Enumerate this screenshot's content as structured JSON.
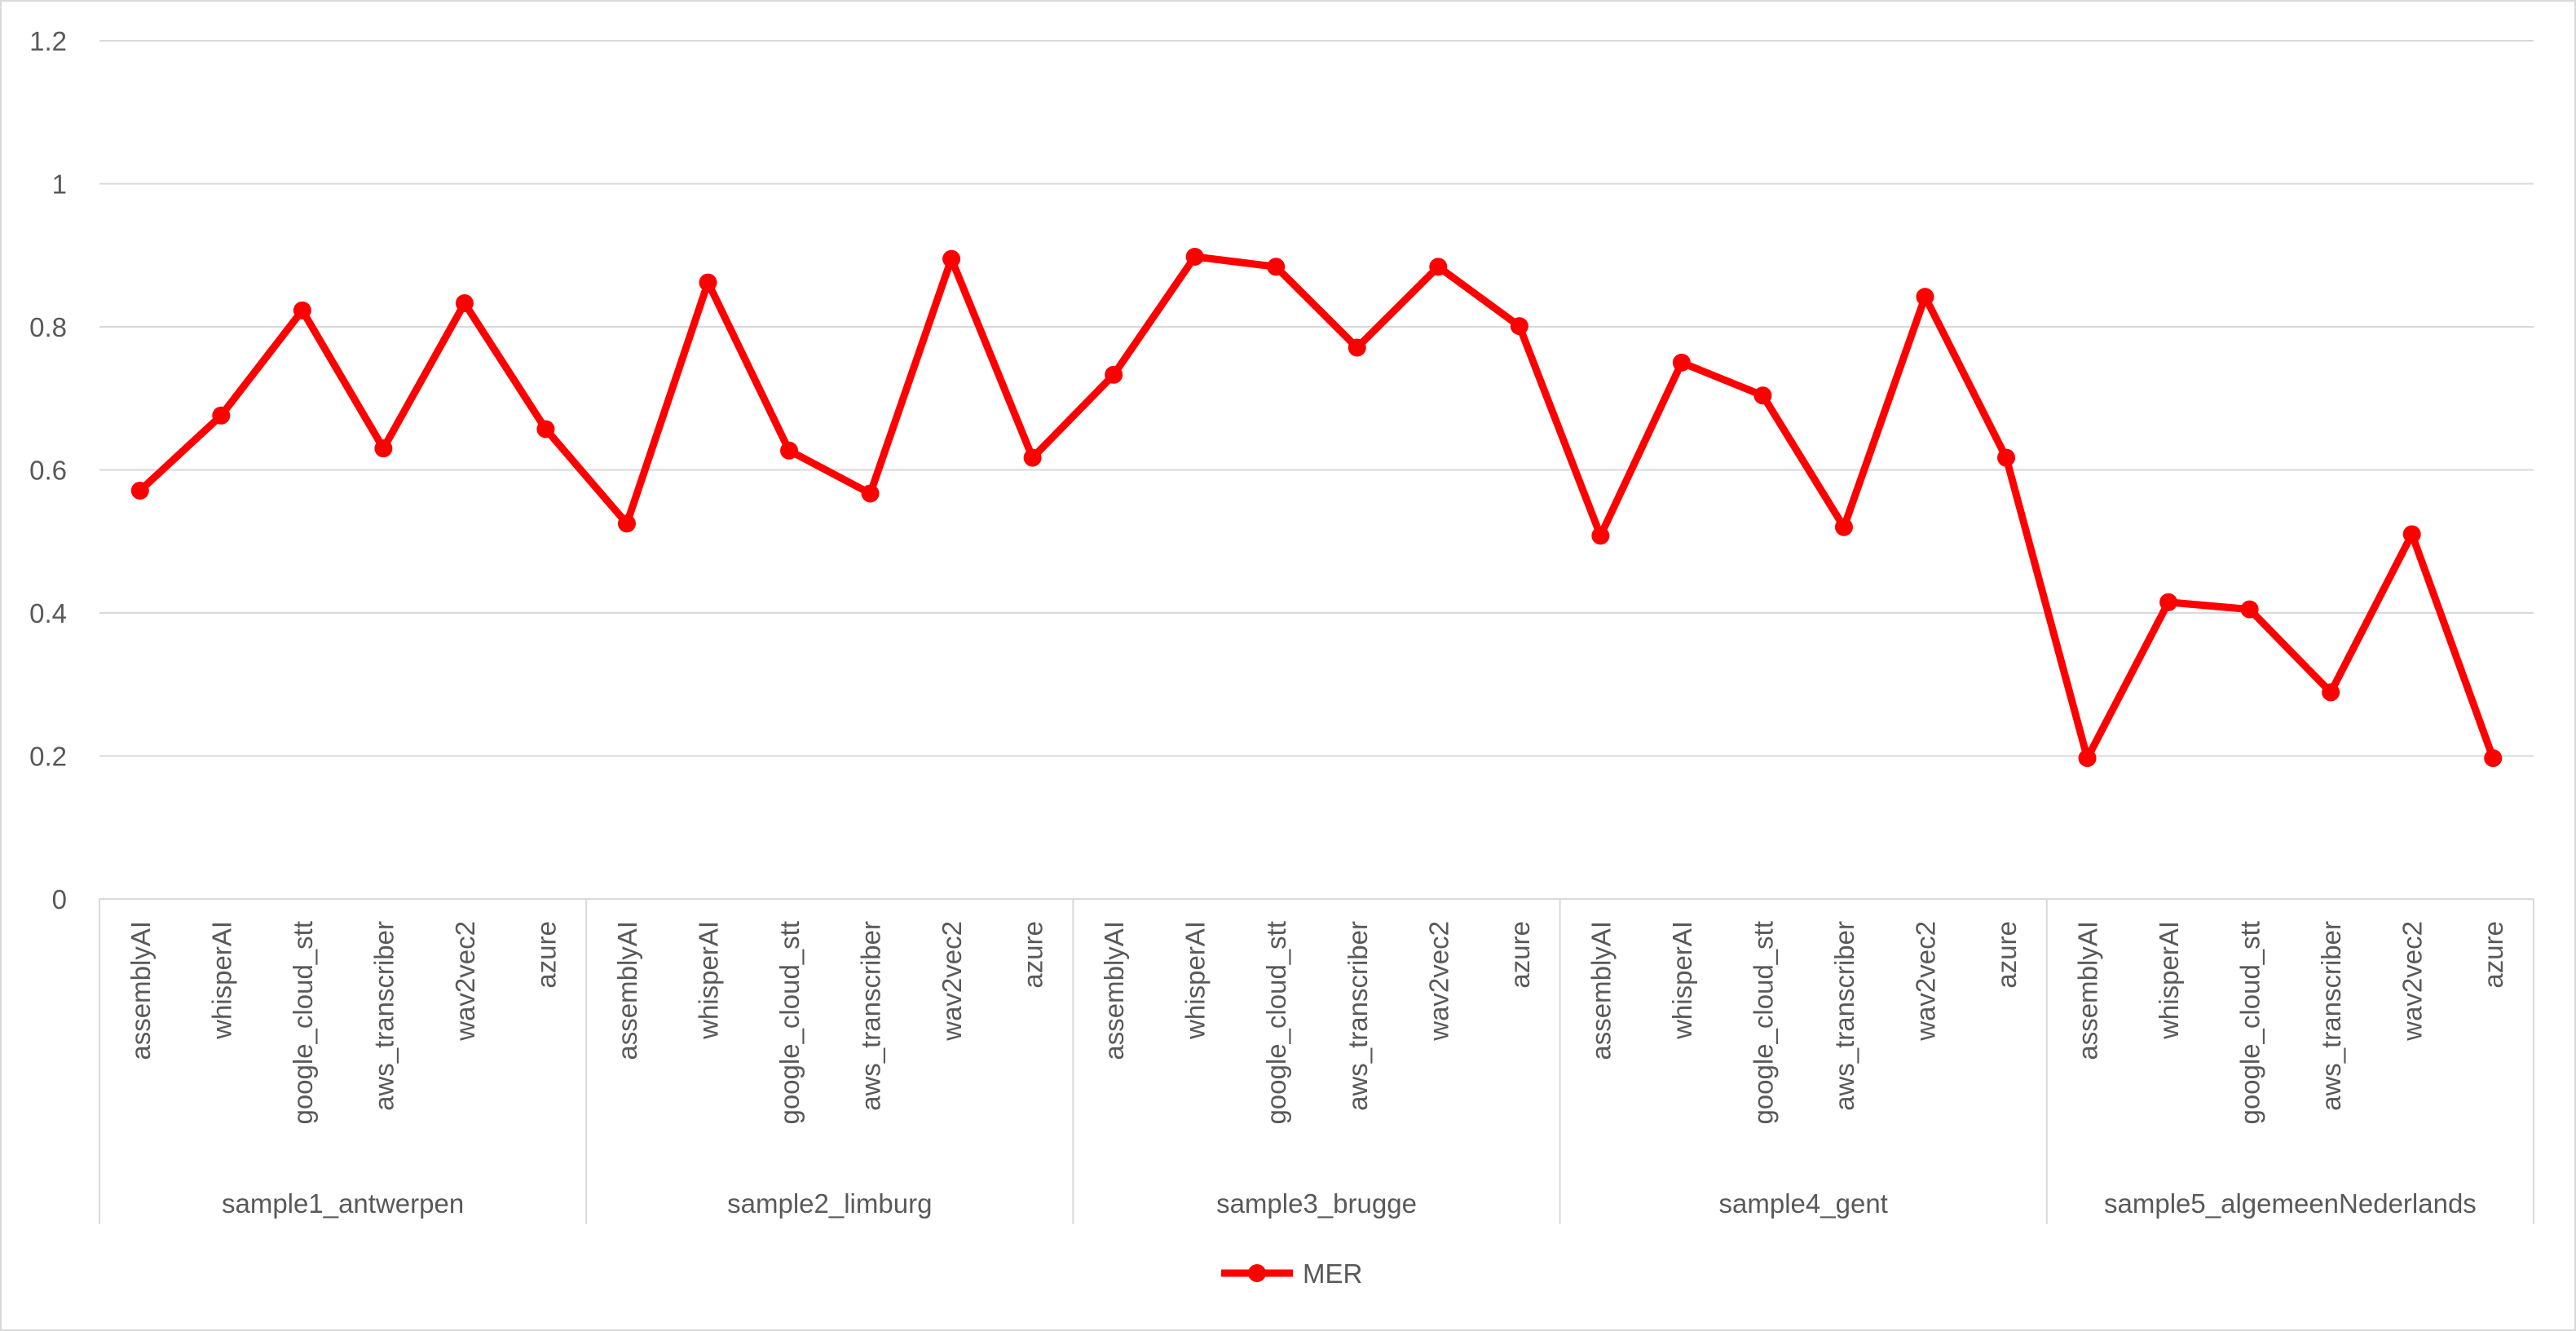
{
  "chart_data": {
    "type": "line",
    "title": "",
    "xlabel": "",
    "ylabel": "",
    "ylim": [
      0,
      1.2
    ],
    "yticks": [
      "0",
      "0.2",
      "0.4",
      "0.6",
      "0.8",
      "1",
      "1.2"
    ],
    "grid": true,
    "legend_position": "bottom",
    "groups": [
      {
        "label": "sample1_antwerpen",
        "categories": [
          "assemblyAI",
          "whisperAI",
          "google_cloud_stt",
          "aws_transcriber",
          "wav2vec2",
          "azure"
        ]
      },
      {
        "label": "sample2_limburg",
        "categories": [
          "assemblyAI",
          "whisperAI",
          "google_cloud_stt",
          "aws_transcriber",
          "wav2vec2",
          "azure"
        ]
      },
      {
        "label": "sample3_brugge",
        "categories": [
          "assemblyAI",
          "whisperAI",
          "google_cloud_stt",
          "aws_transcriber",
          "wav2vec2",
          "azure"
        ]
      },
      {
        "label": "sample4_gent",
        "categories": [
          "assemblyAI",
          "whisperAI",
          "google_cloud_stt",
          "aws_transcriber",
          "wav2vec2",
          "azure"
        ]
      },
      {
        "label": "sample5_algemeenNederlands",
        "categories": [
          "assemblyAI",
          "whisperAI",
          "google_cloud_stt",
          "aws_transcriber",
          "wav2vec2",
          "azure"
        ]
      }
    ],
    "series": [
      {
        "name": "MER",
        "color": "#ff0000",
        "values": [
          0.571,
          0.676,
          0.823,
          0.63,
          0.833,
          0.657,
          0.525,
          0.862,
          0.627,
          0.567,
          0.895,
          0.617,
          0.733,
          0.898,
          0.884,
          0.771,
          0.884,
          0.801,
          0.508,
          0.75,
          0.704,
          0.52,
          0.842,
          0.617,
          0.197,
          0.415,
          0.405,
          0.289,
          0.51,
          0.197
        ]
      }
    ]
  },
  "colors": {
    "series": "#ff0000",
    "grid": "#d9d9d9",
    "text": "#595959"
  }
}
